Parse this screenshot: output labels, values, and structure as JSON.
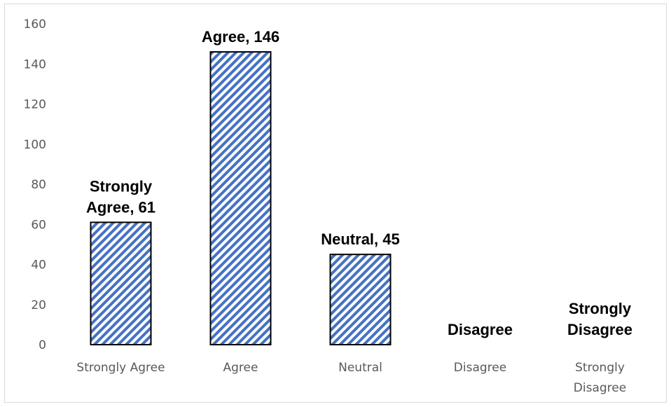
{
  "chart_data": {
    "type": "bar",
    "categories": [
      "Strongly Agree",
      "Agree",
      "Neutral",
      "Disagree",
      "Strongly Disagree"
    ],
    "values": [
      61,
      146,
      45,
      0,
      0
    ],
    "data_labels": [
      "Strongly Agree, 61",
      "Agree, 146",
      "Neutral, 45",
      "Disagree",
      "Strongly Disagree"
    ],
    "y_ticks": [
      "0",
      "20",
      "40",
      "60",
      "80",
      "100",
      "120",
      "140",
      "160"
    ],
    "ylim": [
      0,
      160
    ],
    "title": "",
    "xlabel": "",
    "ylabel": "",
    "grid": false,
    "legend": "none",
    "bar_fill": "diagonal stripes",
    "colors": {
      "stripe": "#4472c4",
      "bar_border": "#000000",
      "tick_text": "#595959",
      "label_text": "#000000"
    }
  }
}
